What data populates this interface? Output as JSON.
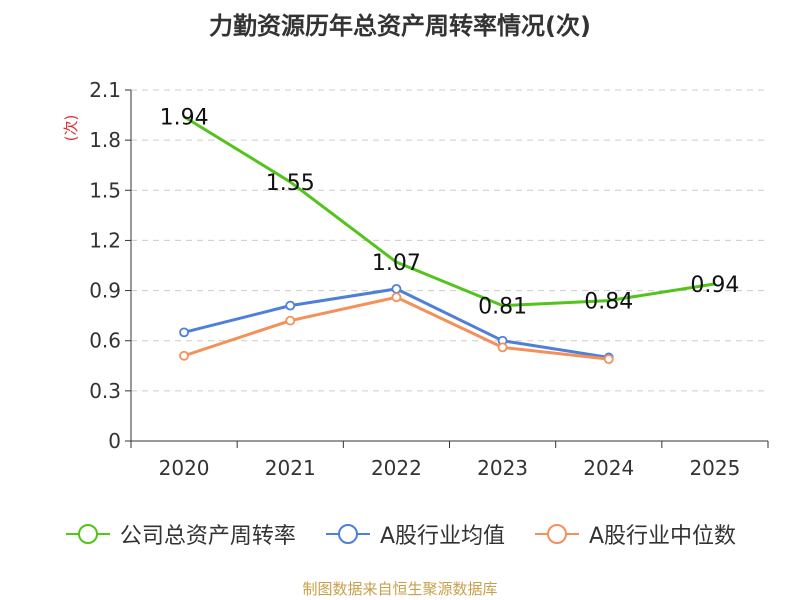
{
  "chart_data": {
    "type": "line",
    "title": "力勤资源历年总资产周转率情况(次)",
    "ylabel": "(次)",
    "xlabel": "",
    "categories": [
      "2020",
      "2021",
      "2022",
      "2023",
      "2024",
      "2025"
    ],
    "yticks": [
      0,
      0.3,
      0.6,
      0.9,
      1.2,
      1.5,
      1.8,
      2.1
    ],
    "ytick_labels": [
      "0",
      "0.3",
      "0.6",
      "0.9",
      "1.2",
      "1.5",
      "1.8",
      "2.1"
    ],
    "ylim": [
      0,
      2.1
    ],
    "grid": true,
    "series": [
      {
        "name": "公司总资产周转率",
        "color": "#52c41a",
        "values": [
          1.94,
          1.55,
          1.07,
          0.81,
          0.84,
          0.94
        ],
        "labels": [
          "1.94",
          "1.55",
          "1.07",
          "0.81",
          "0.84",
          "0.94"
        ]
      },
      {
        "name": "A股行业均值",
        "color": "#4e7fd9",
        "values": [
          0.65,
          0.81,
          0.91,
          0.6,
          0.5,
          null
        ]
      },
      {
        "name": "A股行业中位数",
        "color": "#f4905a",
        "values": [
          0.51,
          0.72,
          0.86,
          0.56,
          0.49,
          null
        ]
      }
    ],
    "source": "制图数据来自恒生聚源数据库"
  }
}
